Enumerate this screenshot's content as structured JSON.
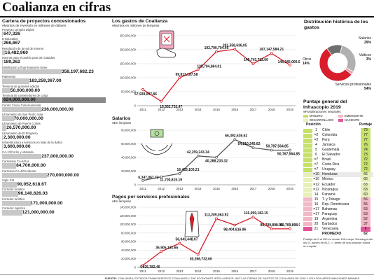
{
  "title": "Coalianza en cifras",
  "left": {
    "title": "Cartera de proyectos concesionados",
    "subtitle": "Montos de inversión en millones de dólares",
    "projects": [
      {
        "name": "Proyecto Lempira Digital",
        "value": "647,326",
        "amount": 647326
      },
      {
        "name": "E-Education",
        "value": "266,667",
        "amount": 266667
      },
      {
        "name": "Resolución de la red de internet",
        "value": "16,482,960",
        "amount": 16482960
      },
      {
        "name": "Internet para el pueblo para 30 ciudades",
        "value": "189,262",
        "amount": 189262
      },
      {
        "name": "Distribución y flujo financiero Enee",
        "value": "358,197,682.23",
        "amount": 358197682.23
      },
      {
        "name": "Palmerola",
        "value": "163,259,367.00",
        "amount": 163259367
      },
      {
        "name": "Terminal de graneles sólidos",
        "value": "50,000,000.00",
        "amount": 50000000
      },
      {
        "name": "Terminal de contenedores de carga",
        "value": "624,000,000.00",
        "amount": 624000000
      },
      {
        "name": "Centro Cívico Gubernamental",
        "value": "236,000,000.00",
        "amount": 236000000
      },
      {
        "name": "Libramiento de San Pedro Sula",
        "value": "70,000,000.00",
        "amount": 70000000
      },
      {
        "name": "Libramiento de Puerto Cortés",
        "value": "26,570,000.00",
        "amount": 26570000
      },
      {
        "name": "Libramiento de El Progreso",
        "value": "2,300,000.00",
        "amount": 2300000
      },
      {
        "name": "Infraestructura y servicios en Islas de la Bahía",
        "value": "3,600,000.00",
        "amount": 3600000
      },
      {
        "name": "CA-13/Corlín y Atlántida",
        "value": "237,000,000.00",
        "amount": 237000000
      },
      {
        "name": "Carreteras CA-5/Sur",
        "value": "84,700,000.00",
        "amount": 84700000
      },
      {
        "name": "Carretera CA-4/Occidente",
        "value": "270,000,000.00",
        "amount": 270000000
      },
      {
        "name": "Siglo XXI",
        "value": "90,052,618.67",
        "amount": 90052618.67
      },
      {
        "name": "Corredor turístico",
        "value": "96,140,626.03",
        "amount": 96140626.03
      },
      {
        "name": "Corredor turístico",
        "value": "171,000,000.00",
        "amount": 171000000
      },
      {
        "name": "Corredor logístico",
        "value": "121,000,000.00",
        "amount": 121000000
      }
    ]
  },
  "gastos": {
    "title": "Los gastos de Coalianza",
    "subtitle": "Montos en millones de lempiras"
  },
  "salarios": {
    "title": "Salarios",
    "subtitle": "En lempiras"
  },
  "pagos": {
    "title": "Pagos por servicios profesionales",
    "subtitle": "En lempiras"
  },
  "distribucion": {
    "title": "Distribución histórica de los gastos",
    "slices": [
      {
        "label": "Salarios",
        "pct": "29%",
        "value": 29,
        "color": "#b0b0b0"
      },
      {
        "label": "Viáticos",
        "pct": "3%",
        "value": 3,
        "color": "#e8a3ad"
      },
      {
        "label": "Servicios profesionales",
        "pct": "54%",
        "value": 54,
        "color": "#d81e2a"
      },
      {
        "label": "Otros",
        "pct": "14%",
        "value": 14,
        "color": "#6e6e6e"
      }
    ]
  },
  "ranking": {
    "title": "Puntaje general del Infrascopio 2019",
    "subtitle": "Ponderaciones neutrales",
    "legend": [
      {
        "label": "MADURO",
        "color": "#c6e06c"
      },
      {
        "label": "EMERGENTE",
        "color": "#f2b8c8"
      },
      {
        "label": "DESARROLLADO",
        "color": "#e6f0b8"
      },
      {
        "label": "NACIENTE",
        "color": "#e0579a"
      }
    ],
    "col_pos": "Posición",
    "col_score": "Puntaje",
    "rows": [
      {
        "pos": "1",
        "country": "Chile",
        "score": "79",
        "color": "#c6e06c"
      },
      {
        "pos": "=2",
        "country": "Colombia",
        "score": "77",
        "color": "#c6e06c"
      },
      {
        "pos": "=2",
        "country": "Perú",
        "score": "77",
        "color": "#c6e06c"
      },
      {
        "pos": "4",
        "country": "Jamaica",
        "score": "76",
        "color": "#c6e06c"
      },
      {
        "pos": "5",
        "country": "Guatemala",
        "score": "74",
        "color": "#c6e06c"
      },
      {
        "pos": "6",
        "country": "El Salvador",
        "score": "73",
        "color": "#c6e06c"
      },
      {
        "pos": "=7",
        "country": "Brasil",
        "score": "72",
        "color": "#c6e06c"
      },
      {
        "pos": "=7",
        "country": "Costa Rica",
        "score": "72",
        "color": "#c6e06c"
      },
      {
        "pos": "=7",
        "country": "Uruguay",
        "score": "72",
        "color": "#c6e06c"
      },
      {
        "pos": "=10",
        "country": "Honduras",
        "score": "66",
        "color": "#e6f0b8"
      },
      {
        "pos": "=10",
        "country": "México",
        "score": "66",
        "color": "#e6f0b8"
      },
      {
        "pos": "=12",
        "country": "Ecuador",
        "score": "63",
        "color": "#e6f0b8"
      },
      {
        "pos": "=12",
        "country": "Nicaragua",
        "score": "63",
        "color": "#e6f0b8"
      },
      {
        "pos": "14",
        "country": "Panamá",
        "score": "60",
        "color": "#e6f0b8"
      },
      {
        "pos": "15",
        "country": "T. y Tobago",
        "score": "56",
        "color": "#f2b8c8"
      },
      {
        "pos": "16",
        "country": "Rep. Dominicana",
        "score": "55",
        "color": "#f2b8c8"
      },
      {
        "pos": "=17",
        "country": "Bahamas",
        "score": "53",
        "color": "#f2b8c8"
      },
      {
        "pos": "=17",
        "country": "Paraguay",
        "score": "53",
        "color": "#f2b8c8"
      },
      {
        "pos": "19",
        "country": "Argentina",
        "score": "52",
        "color": "#f2b8c8"
      },
      {
        "pos": "20",
        "country": "Barbados",
        "score": "37",
        "color": "#f2b8c8"
      },
      {
        "pos": "21",
        "country": "Venezuela",
        "score": "8",
        "color": "#e0579a"
      },
      {
        "pos": "",
        "country": "PROMEDIO",
        "score": "62",
        "color": "#ffffff"
      }
    ],
    "note": "Puntaje de 0 al 100 en donde 100=mejor. Ranking entre los 21 países de ALC. =, antes de una posición indica un empate"
  },
  "footer": {
    "label": "FUENTE:",
    "text": "COALIANZA, ESTADOS FINANCIEROS DE COALIANZA Y THE ECONOMIST INTELLIGENCE UNIT.LAS CIFRAS DE GASTOS DE COALIANZA DE 2018 Y 2019 SON APROXIMACIONES MÍNIMAS"
  },
  "colors": {
    "red": "#d81e2a",
    "gray_line": "#555555",
    "highlight": "#000000"
  },
  "chart_data": [
    {
      "type": "line",
      "title": "Los gastos de Coalianza",
      "x": [
        "2011",
        "2012",
        "2013",
        "2014",
        "2015",
        "2016",
        "2017",
        "2018",
        "2019"
      ],
      "values": [
        57939097.86,
        15552732.47,
        99813187.58,
        128794864.01,
        192790704.46,
        201558636.05,
        149743712.0,
        187147584.21,
        145345000.0
      ],
      "labels": [
        "57,939,097.86",
        "15,552,732.47",
        "99,813,187.58",
        "128,794,864.01",
        "192,790,704.46",
        "201,558,636.05",
        "149,743,712.00",
        "187,147,584.21",
        "145,345,000.00"
      ],
      "yticks": [
        "0",
        "50,000,000",
        "100,000,000",
        "150,000,000",
        "200,000,000",
        "250,000,000"
      ],
      "ylim": [
        0,
        250000000
      ],
      "color": "#d81e2a"
    },
    {
      "type": "line",
      "title": "Salarios",
      "x": [
        "2011",
        "2012",
        "2013",
        "2014",
        "2015",
        "2016",
        "2017",
        "2018",
        "2019"
      ],
      "values": [
        6347067.72,
        11700815.19,
        16483100.21,
        42259243.34,
        40288233.32,
        66392536.62,
        54210245.62,
        50787564.85,
        50767564.85
      ],
      "labels": [
        "6,347,067.72",
        "11,700,815.19",
        "16,483,100.21",
        "42,259,243.34",
        "40,288,233.32",
        "66,392,536.62",
        "54,210,245.62",
        "50,787,564.85",
        "50,767,564.85"
      ],
      "yticks": [
        "0",
        "20,000,000",
        "40,000,000",
        "60,000,000",
        "80,000,000"
      ],
      "ylim": [
        0,
        80000000
      ],
      "color": "#555555"
    },
    {
      "type": "line",
      "title": "Pagos por servicios profesionales",
      "x": [
        "2011",
        "2012",
        "2013",
        "2014",
        "2015",
        "2016",
        "2017",
        "2018",
        "2019"
      ],
      "values": [
        4925382.46,
        36905131.66,
        56043448.07,
        30266732.6,
        113209063.92,
        98404616.96,
        116959182.15,
        89709898.91,
        89709898.91
      ],
      "labels": [
        "4,925,382.46",
        "36,905,131.66",
        "56,043,448.07",
        "30,266,732.60",
        "113,209,063.92",
        "98,404,616.96",
        "116,959,182.15",
        "89,709,898.91",
        "89,709,898.91"
      ],
      "yticks": [
        "0",
        "20,000,000",
        "40,000,000",
        "60,000,000",
        "80,000,000",
        "100,000,000",
        "120,000,000",
        "140,000,000"
      ],
      "ylim": [
        0,
        140000000
      ],
      "color": "#d81e2a"
    },
    {
      "type": "pie",
      "title": "Distribución histórica de los gastos",
      "categories": [
        "Salarios",
        "Viáticos",
        "Servicios profesionales",
        "Otros"
      ],
      "values": [
        29,
        3,
        54,
        14
      ]
    }
  ]
}
